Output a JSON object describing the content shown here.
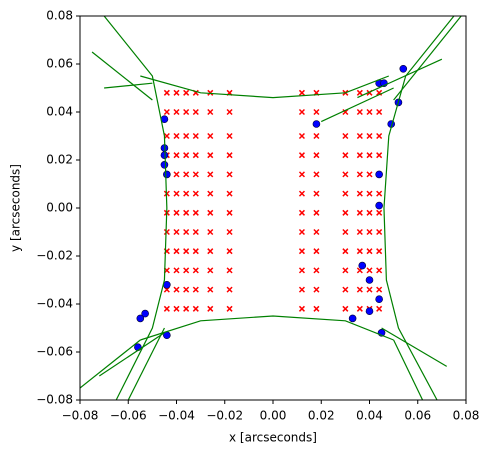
{
  "chart_data": {
    "type": "scatter",
    "xlabel": "x [arcseconds]",
    "ylabel": "y [arcseconds]",
    "xlim": [
      -0.08,
      0.08
    ],
    "ylim": [
      -0.08,
      0.08
    ],
    "xticks": [
      {
        "value": -0.08,
        "label": "−0.08"
      },
      {
        "value": -0.06,
        "label": "−0.06"
      },
      {
        "value": -0.04,
        "label": "−0.04"
      },
      {
        "value": -0.02,
        "label": "−0.02"
      },
      {
        "value": 0,
        "label": "0.00"
      },
      {
        "value": 0.02,
        "label": "0.02"
      },
      {
        "value": 0.04,
        "label": "0.04"
      },
      {
        "value": 0.06,
        "label": "0.06"
      },
      {
        "value": 0.08,
        "label": "0.08"
      }
    ],
    "yticks": [
      {
        "value": -0.08,
        "label": "−0.08"
      },
      {
        "value": -0.06,
        "label": "−0.06"
      },
      {
        "value": -0.04,
        "label": "−0.04"
      },
      {
        "value": -0.02,
        "label": "−0.02"
      },
      {
        "value": 0,
        "label": "0.00"
      },
      {
        "value": 0.02,
        "label": "0.02"
      },
      {
        "value": 0.04,
        "label": "0.04"
      },
      {
        "value": 0.06,
        "label": "0.06"
      },
      {
        "value": 0.08,
        "label": "0.08"
      }
    ],
    "grid": false,
    "lines": [
      {
        "color": "green",
        "x": [
          -0.055,
          -0.03,
          0,
          0.03,
          0.048
        ],
        "y": [
          0.055,
          0.048,
          0.046,
          0.048,
          0.055
        ]
      },
      {
        "color": "green",
        "x": [
          -0.055,
          -0.03,
          0,
          0.03,
          0.05
        ],
        "y": [
          -0.055,
          -0.047,
          -0.045,
          -0.047,
          -0.055
        ]
      },
      {
        "color": "green",
        "x": [
          -0.07,
          -0.05,
          -0.045,
          -0.044,
          -0.045,
          -0.05,
          -0.065
        ],
        "y": [
          0.08,
          0.055,
          0.03,
          0,
          -0.03,
          -0.05,
          -0.08
        ]
      },
      {
        "color": "green",
        "x": [
          0.075,
          0.055,
          0.048,
          0.046,
          0.047,
          0.052,
          0.068
        ],
        "y": [
          0.08,
          0.055,
          0.03,
          0,
          -0.03,
          -0.05,
          -0.08
        ]
      },
      {
        "color": "green",
        "x": [
          -0.075,
          -0.05
        ],
        "y": [
          0.065,
          0.045
        ]
      },
      {
        "color": "green",
        "x": [
          -0.08,
          -0.055
        ],
        "y": [
          -0.075,
          -0.055
        ]
      },
      {
        "color": "green",
        "x": [
          -0.06,
          -0.045
        ],
        "y": [
          -0.08,
          -0.05
        ]
      },
      {
        "color": "green",
        "x": [
          -0.07,
          -0.05
        ],
        "y": [
          0.05,
          0.052
        ]
      },
      {
        "color": "green",
        "x": [
          0.02,
          0.05
        ],
        "y": [
          0.036,
          0.05
        ]
      },
      {
        "color": "green",
        "x": [
          0.05,
          0.078
        ],
        "y": [
          0.045,
          0.08
        ]
      },
      {
        "color": "green",
        "x": [
          0.035,
          0.07
        ],
        "y": [
          0.046,
          0.062
        ]
      },
      {
        "color": "green",
        "x": [
          0.045,
          0.072
        ],
        "y": [
          -0.05,
          -0.066
        ]
      },
      {
        "color": "green",
        "x": [
          0.05,
          0.062
        ],
        "y": [
          -0.055,
          -0.08
        ]
      },
      {
        "color": "green",
        "x": [
          -0.072,
          -0.045
        ],
        "y": [
          -0.07,
          -0.052
        ]
      }
    ],
    "series": [
      {
        "color": "red",
        "marker": "x",
        "x": [
          -0.044,
          -0.04,
          -0.036,
          -0.032,
          -0.026,
          -0.018,
          0.012,
          0.018,
          0.03,
          0.036,
          0.04,
          0.044,
          -0.044,
          -0.04,
          -0.036,
          -0.032,
          -0.026,
          -0.018,
          0.012,
          0.018,
          0.03,
          0.036,
          0.04,
          0.044,
          -0.044,
          -0.04,
          -0.036,
          -0.032,
          -0.026,
          -0.018,
          0.012,
          0.018,
          0.03,
          0.036,
          0.04,
          0.044,
          -0.044,
          -0.04,
          -0.036,
          -0.032,
          -0.026,
          -0.018,
          0.012,
          0.018,
          0.03,
          0.036,
          0.04,
          0.044,
          -0.044,
          -0.04,
          -0.036,
          -0.032,
          -0.026,
          -0.018,
          0.012,
          0.018,
          0.03,
          0.036,
          0.04,
          0.044,
          -0.044,
          -0.04,
          -0.036,
          -0.032,
          -0.026,
          -0.018,
          0.012,
          0.018,
          0.03,
          0.036,
          0.04,
          0.044,
          -0.044,
          -0.04,
          -0.036,
          -0.032,
          -0.026,
          -0.018,
          0.012,
          0.018,
          0.03,
          0.036,
          0.04,
          0.044,
          -0.044,
          -0.04,
          -0.036,
          -0.032,
          -0.026,
          -0.018,
          0.012,
          0.018,
          0.03,
          0.036,
          0.04,
          0.044,
          -0.044,
          -0.04,
          -0.036,
          -0.032,
          -0.026,
          -0.018,
          0.012,
          0.018,
          0.03,
          0.036,
          0.04,
          0.044,
          -0.044,
          -0.04,
          -0.036,
          -0.032,
          -0.026,
          -0.018,
          0.012,
          0.018,
          0.03,
          0.036,
          0.04,
          0.044,
          -0.044,
          -0.04,
          -0.036,
          -0.032,
          -0.026,
          -0.018,
          0.012,
          0.018,
          0.03,
          0.036,
          0.04,
          0.044,
          -0.044,
          -0.04,
          -0.036,
          -0.032,
          -0.026,
          -0.018,
          0.012,
          0.018,
          0.03,
          0.036,
          0.04,
          0.044
        ],
        "y": [
          0.048,
          0.048,
          0.048,
          0.048,
          0.048,
          0.048,
          0.048,
          0.048,
          0.048,
          0.048,
          0.048,
          0.048,
          0.04,
          0.04,
          0.04,
          0.04,
          0.04,
          0.04,
          0.04,
          0.04,
          0.04,
          0.04,
          0.04,
          0.04,
          0.03,
          0.03,
          0.03,
          0.03,
          0.03,
          0.03,
          0.03,
          0.03,
          0.03,
          0.03,
          0.03,
          0.03,
          0.022,
          0.022,
          0.022,
          0.022,
          0.022,
          0.022,
          0.022,
          0.022,
          0.022,
          0.022,
          0.022,
          0.022,
          0.014,
          0.014,
          0.014,
          0.014,
          0.014,
          0.014,
          0.014,
          0.014,
          0.014,
          0.014,
          0.014,
          0.014,
          0.006,
          0.006,
          0.006,
          0.006,
          0.006,
          0.006,
          0.006,
          0.006,
          0.006,
          0.006,
          0.006,
          0.006,
          -0.002,
          -0.002,
          -0.002,
          -0.002,
          -0.002,
          -0.002,
          -0.002,
          -0.002,
          -0.002,
          -0.002,
          -0.002,
          -0.002,
          -0.01,
          -0.01,
          -0.01,
          -0.01,
          -0.01,
          -0.01,
          -0.01,
          -0.01,
          -0.01,
          -0.01,
          -0.01,
          -0.01,
          -0.018,
          -0.018,
          -0.018,
          -0.018,
          -0.018,
          -0.018,
          -0.018,
          -0.018,
          -0.018,
          -0.018,
          -0.018,
          -0.018,
          -0.026,
          -0.026,
          -0.026,
          -0.026,
          -0.026,
          -0.026,
          -0.026,
          -0.026,
          -0.026,
          -0.026,
          -0.026,
          -0.026,
          -0.034,
          -0.034,
          -0.034,
          -0.034,
          -0.034,
          -0.034,
          -0.034,
          -0.034,
          -0.034,
          -0.034,
          -0.034,
          -0.034,
          -0.042,
          -0.042,
          -0.042,
          -0.042,
          -0.042,
          -0.042,
          -0.042,
          -0.042,
          -0.042,
          -0.042,
          -0.042,
          -0.042
        ]
      },
      {
        "color": "blue",
        "marker": "o",
        "x": [
          -0.056,
          -0.055,
          -0.053,
          -0.044,
          -0.044,
          -0.044,
          -0.045,
          -0.045,
          -0.045,
          -0.045,
          0.018,
          0.044,
          0.046,
          0.054,
          0.052,
          0.049,
          0.044,
          0.044,
          0.037,
          0.04,
          0.044,
          0.04,
          0.033,
          0.045
        ],
        "y": [
          -0.058,
          -0.046,
          -0.044,
          -0.053,
          -0.032,
          0.014,
          0.018,
          0.022,
          0.025,
          0.037,
          0.035,
          0.052,
          0.052,
          0.058,
          0.044,
          0.035,
          0.014,
          0.001,
          -0.024,
          -0.03,
          -0.038,
          -0.043,
          -0.046,
          -0.052
        ]
      }
    ]
  }
}
